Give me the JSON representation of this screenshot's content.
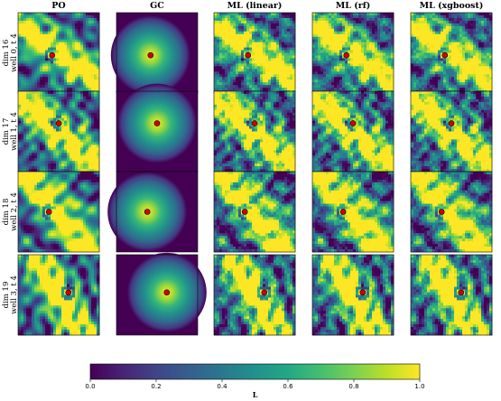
{
  "chart_data": {
    "type": "heatmap",
    "columns": [
      "PO",
      "GC",
      "ML (linear)",
      "ML (rf)",
      "ML (xgboost)"
    ],
    "rows": [
      {
        "label_line1": "dim 16",
        "label_line2": "well 0, t 4",
        "well": [
          0.42,
          0.53
        ]
      },
      {
        "label_line1": "dim 17",
        "label_line2": "well 1, t 4",
        "well": [
          0.5,
          0.4
        ]
      },
      {
        "label_line1": "dim 18",
        "label_line2": "well 2, t 4",
        "well": [
          0.38,
          0.5
        ]
      },
      {
        "label_line1": "dim 19",
        "label_line2": "well 3, t 4",
        "well": [
          0.62,
          0.47
        ]
      }
    ],
    "colorbar": {
      "label": "L",
      "ticks": [
        "0.0",
        "0.2",
        "0.4",
        "0.6",
        "0.8",
        "1.0"
      ],
      "range": [
        0.0,
        1.0
      ],
      "colormap": "viridis"
    },
    "well_marker_color": "#d40000"
  }
}
